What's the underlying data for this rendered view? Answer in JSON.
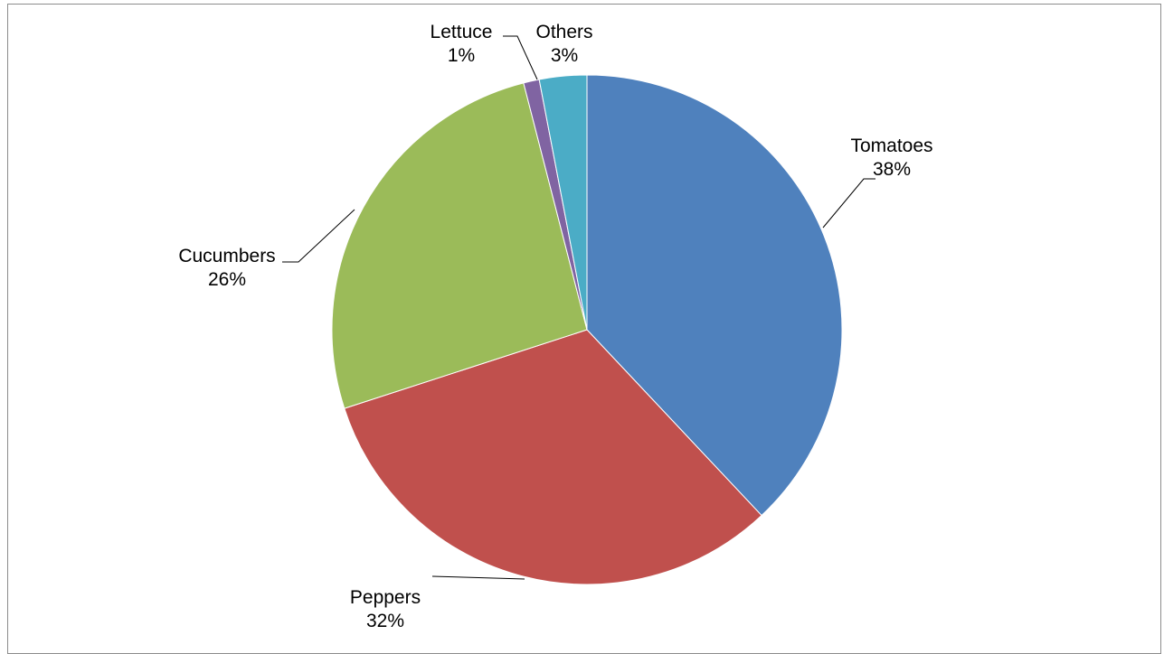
{
  "chart_data": {
    "type": "pie",
    "categories": [
      "Tomatoes",
      "Peppers",
      "Cucumbers",
      "Lettuce",
      "Others"
    ],
    "values": [
      38,
      32,
      26,
      1,
      3
    ],
    "value_labels": [
      "38%",
      "32%",
      "26%",
      "1%",
      "3%"
    ],
    "colors": [
      "#4f81bd",
      "#c0504d",
      "#9bbb59",
      "#8064a2",
      "#4bacc6"
    ],
    "start_angle": "12 o'clock",
    "direction": "clockwise",
    "legend": "none",
    "data_labels": "outside with leader lines"
  }
}
